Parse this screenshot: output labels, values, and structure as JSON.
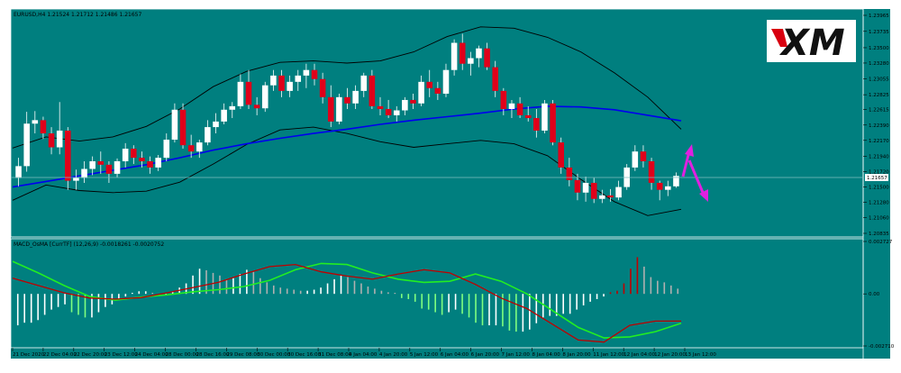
{
  "chart_data": [
    {
      "type": "candlestick",
      "title": "EURUSD,H4  1.21524 1.21712 1.21486 1.21657",
      "last_price_label": "1.21657",
      "ylim": [
        1.20835,
        1.23965
      ],
      "y_ticks": [
        "1.23965",
        "1.23735",
        "1.23500",
        "1.23280",
        "1.23055",
        "1.22825",
        "1.22615",
        "1.22390",
        "1.22170",
        "1.21940",
        "1.21720",
        "1.21500",
        "1.21280",
        "1.21060",
        "1.20835"
      ],
      "x_ticks": [
        "21 Dec 2020",
        "22 Dec 04:00",
        "22 Dec 20:00",
        "23 Dec 12:00",
        "24 Dec 04:00",
        "28 Dec 00:00",
        "28 Dec 16:00",
        "29 Dec 08:00",
        "30 Dec 00:00",
        "30 Dec 16:00",
        "31 Dec 08:00",
        "4 Jan 04:00",
        "4 Jan 20:00",
        "5 Jan 12:00",
        "6 Jan 04:00",
        "6 Jan 20:00",
        "7 Jan 12:00",
        "8 Jan 04:00",
        "8 Jan 20:00",
        "11 Jan 12:00",
        "12 Jan 04:00",
        "12 Jan 20:00",
        "13 Jan 12:00"
      ],
      "candles": [
        [
          1.2163,
          1.2192,
          1.2151,
          1.218
        ],
        [
          1.218,
          1.2258,
          1.2172,
          1.2241
        ],
        [
          1.2241,
          1.2259,
          1.2227,
          1.2246
        ],
        [
          1.2246,
          1.2251,
          1.2219,
          1.2227
        ],
        [
          1.2227,
          1.2236,
          1.2197,
          1.2207
        ],
        [
          1.2207,
          1.2272,
          1.2197,
          1.2231
        ],
        [
          1.2231,
          1.2236,
          1.2146,
          1.2159
        ],
        [
          1.2159,
          1.2175,
          1.2146,
          1.2163
        ],
        [
          1.2163,
          1.2187,
          1.2156,
          1.2176
        ],
        [
          1.2176,
          1.2194,
          1.2167,
          1.2187
        ],
        [
          1.2187,
          1.2201,
          1.2169,
          1.2182
        ],
        [
          1.2182,
          1.2187,
          1.2156,
          1.2169
        ],
        [
          1.2169,
          1.2191,
          1.2164,
          1.2187
        ],
        [
          1.2187,
          1.2213,
          1.2178,
          1.2205
        ],
        [
          1.2205,
          1.221,
          1.2183,
          1.2192
        ],
        [
          1.2192,
          1.2201,
          1.2178,
          1.2187
        ],
        [
          1.2187,
          1.2194,
          1.2169,
          1.2178
        ],
        [
          1.2178,
          1.2196,
          1.2173,
          1.2192
        ],
        [
          1.2192,
          1.2227,
          1.2187,
          1.2218
        ],
        [
          1.2218,
          1.227,
          1.2214,
          1.2261
        ],
        [
          1.2261,
          1.227,
          1.2205,
          1.221
        ],
        [
          1.221,
          1.2225,
          1.2192,
          1.2201
        ],
        [
          1.2201,
          1.2218,
          1.2192,
          1.2214
        ],
        [
          1.2214,
          1.2246,
          1.221,
          1.2236
        ],
        [
          1.2236,
          1.2256,
          1.2227,
          1.2244
        ],
        [
          1.2244,
          1.227,
          1.224,
          1.2261
        ],
        [
          1.2261,
          1.2272,
          1.2249,
          1.2266
        ],
        [
          1.2266,
          1.2312,
          1.2262,
          1.2301
        ],
        [
          1.2301,
          1.2318,
          1.2262,
          1.2268
        ],
        [
          1.2268,
          1.2279,
          1.2253,
          1.2263
        ],
        [
          1.2263,
          1.2301,
          1.2258,
          1.2296
        ],
        [
          1.2296,
          1.2318,
          1.2288,
          1.231
        ],
        [
          1.231,
          1.2318,
          1.2279,
          1.2288
        ],
        [
          1.2288,
          1.231,
          1.2279,
          1.2301
        ],
        [
          1.2301,
          1.2318,
          1.2288,
          1.231
        ],
        [
          1.231,
          1.2327,
          1.2292,
          1.2318
        ],
        [
          1.2318,
          1.2327,
          1.2296,
          1.2305
        ],
        [
          1.2305,
          1.2314,
          1.227,
          1.2279
        ],
        [
          1.2279,
          1.2296,
          1.2236,
          1.2244
        ],
        [
          1.2244,
          1.2284,
          1.224,
          1.2279
        ],
        [
          1.2279,
          1.2292,
          1.2262,
          1.227
        ],
        [
          1.227,
          1.2296,
          1.2262,
          1.2288
        ],
        [
          1.2288,
          1.2314,
          1.2279,
          1.231
        ],
        [
          1.231,
          1.2318,
          1.2262,
          1.2266
        ],
        [
          1.2266,
          1.2279,
          1.2253,
          1.2262
        ],
        [
          1.2262,
          1.2275,
          1.2249,
          1.2253
        ],
        [
          1.2253,
          1.2266,
          1.2244,
          1.226
        ],
        [
          1.226,
          1.2279,
          1.2253,
          1.2275
        ],
        [
          1.2275,
          1.2284,
          1.2262,
          1.227
        ],
        [
          1.227,
          1.231,
          1.2266,
          1.2301
        ],
        [
          1.2301,
          1.2318,
          1.2279,
          1.2292
        ],
        [
          1.2292,
          1.2301,
          1.2275,
          1.2284
        ],
        [
          1.2284,
          1.2327,
          1.2279,
          1.2318
        ],
        [
          1.2318,
          1.2362,
          1.231,
          1.2357
        ],
        [
          1.2357,
          1.237,
          1.2318,
          1.2327
        ],
        [
          1.2327,
          1.2344,
          1.231,
          1.2335
        ],
        [
          1.2335,
          1.2353,
          1.2322,
          1.2349
        ],
        [
          1.2349,
          1.2357,
          1.2318,
          1.2322
        ],
        [
          1.2322,
          1.2331,
          1.2279,
          1.2288
        ],
        [
          1.2288,
          1.2292,
          1.2253,
          1.2262
        ],
        [
          1.2262,
          1.2275,
          1.2249,
          1.227
        ],
        [
          1.227,
          1.2279,
          1.2249,
          1.2253
        ],
        [
          1.2253,
          1.2266,
          1.2244,
          1.2249
        ],
        [
          1.2249,
          1.2262,
          1.2221,
          1.2231
        ],
        [
          1.2231,
          1.2275,
          1.2227,
          1.227
        ],
        [
          1.227,
          1.2275,
          1.221,
          1.2214
        ],
        [
          1.2214,
          1.2221,
          1.2169,
          1.2178
        ],
        [
          1.2178,
          1.2192,
          1.2151,
          1.216
        ],
        [
          1.216,
          1.2169,
          1.2131,
          1.2142
        ],
        [
          1.2142,
          1.2165,
          1.2129,
          1.2156
        ],
        [
          1.2156,
          1.2163,
          1.2127,
          1.2133
        ],
        [
          1.2133,
          1.2146,
          1.2127,
          1.2138
        ],
        [
          1.2138,
          1.2147,
          1.2129,
          1.2135
        ],
        [
          1.2135,
          1.2159,
          1.2131,
          1.215
        ],
        [
          1.215,
          1.2183,
          1.2146,
          1.2178
        ],
        [
          1.2178,
          1.221,
          1.2173,
          1.2201
        ],
        [
          1.2201,
          1.221,
          1.2178,
          1.2187
        ],
        [
          1.2187,
          1.2192,
          1.2146,
          1.2156
        ],
        [
          1.2156,
          1.2159,
          1.2131,
          1.2146
        ],
        [
          1.2146,
          1.2159,
          1.2137,
          1.2151
        ],
        [
          1.2151,
          1.2171,
          1.2149,
          1.2166
        ]
      ],
      "ma_blue_visual": [
        1.215,
        1.2158,
        1.2166,
        1.2174,
        1.2182,
        1.2192,
        1.2203,
        1.2212,
        1.222,
        1.2227,
        1.2233,
        1.224,
        1.2246,
        1.2251,
        1.2256,
        1.2262,
        1.2266,
        1.2265,
        1.2261,
        1.2253,
        1.2245
      ],
      "bb_upper_visual": [
        1.2206,
        1.2222,
        1.2216,
        1.2222,
        1.2237,
        1.2262,
        1.2294,
        1.2316,
        1.2329,
        1.2331,
        1.2328,
        1.2331,
        1.2344,
        1.2366,
        1.238,
        1.2378,
        1.2365,
        1.2344,
        1.2314,
        1.2279,
        1.2233
      ],
      "bb_lower_visual": [
        1.2131,
        1.2153,
        1.2145,
        1.2142,
        1.2144,
        1.2157,
        1.2183,
        1.2211,
        1.2232,
        1.2236,
        1.2227,
        1.2215,
        1.2207,
        1.2212,
        1.2217,
        1.2212,
        1.2195,
        1.2161,
        1.2129,
        1.2109,
        1.2118
      ],
      "colors": {
        "bg": "#007f7f",
        "bull": "#ffffff",
        "bear": "#e0001a",
        "ma": "#0000ee",
        "bands": "#000000",
        "arrow": "#e020e0"
      }
    },
    {
      "type": "bar",
      "title": "MACD_OsMA [CurrTF] (12,26,9) -0.0018261 -0.0020752",
      "ylim": [
        -0.00271,
        0.002727
      ],
      "y_ticks": [
        "0.002727",
        "0.00",
        "-0.002710"
      ],
      "histogram": [
        -0.6,
        -0.55,
        -0.55,
        -0.5,
        -0.4,
        -0.3,
        -0.25,
        -0.2,
        -0.35,
        -0.4,
        -0.45,
        -0.45,
        -0.35,
        -0.25,
        -0.2,
        -0.1,
        -0.05,
        0.02,
        0.05,
        0.05,
        0.02,
        -0.04,
        -0.02,
        0.05,
        0.12,
        0.2,
        0.35,
        0.48,
        0.45,
        0.4,
        0.35,
        0.28,
        0.3,
        0.38,
        0.46,
        0.42,
        0.3,
        0.22,
        0.16,
        0.12,
        0.1,
        0.08,
        0.06,
        0.06,
        0.08,
        0.12,
        0.2,
        0.28,
        0.35,
        0.32,
        0.25,
        0.2,
        0.14,
        0.1,
        0.06,
        0.03,
        0.02,
        -0.08,
        -0.1,
        -0.15,
        -0.28,
        -0.3,
        -0.35,
        -0.4,
        -0.35,
        -0.3,
        -0.38,
        -0.45,
        -0.55,
        -0.6,
        -0.6,
        -0.6,
        -0.62,
        -0.7,
        -0.72,
        -0.72,
        -0.68,
        -0.56,
        -0.45,
        -0.42,
        -0.42,
        -0.38,
        -0.38,
        -0.3,
        -0.22,
        -0.15,
        -0.1,
        -0.05,
        0.03,
        0.06,
        0.2,
        0.48,
        0.7,
        0.52,
        0.32,
        0.25,
        0.22,
        0.16,
        0.1
      ],
      "macd_red_visual": [
        0.3,
        0.16,
        0.02,
        -0.08,
        -0.1,
        -0.07,
        0.02,
        0.12,
        0.22,
        0.38,
        0.52,
        0.56,
        0.42,
        0.34,
        0.28,
        0.38,
        0.46,
        0.4,
        0.18,
        -0.08,
        -0.28,
        -0.58,
        -0.88,
        -0.92,
        -0.6,
        -0.52,
        -0.52
      ],
      "signal_green_visual": [
        0.62,
        0.4,
        0.16,
        -0.05,
        -0.12,
        -0.06,
        -0.02,
        0.04,
        0.08,
        0.14,
        0.26,
        0.46,
        0.58,
        0.56,
        0.4,
        0.28,
        0.22,
        0.24,
        0.38,
        0.24,
        0.0,
        -0.32,
        -0.64,
        -0.84,
        -0.82,
        -0.72,
        -0.56
      ],
      "colors": {
        "hist_up": "#ffffff",
        "hist_down_strong": "#7fff7f",
        "hist_mixed": "#b0b0b0",
        "hist_red": "#c00000",
        "macd": "#c00000",
        "signal": "#22ee22"
      }
    }
  ],
  "brand": {
    "logo": "XM"
  }
}
